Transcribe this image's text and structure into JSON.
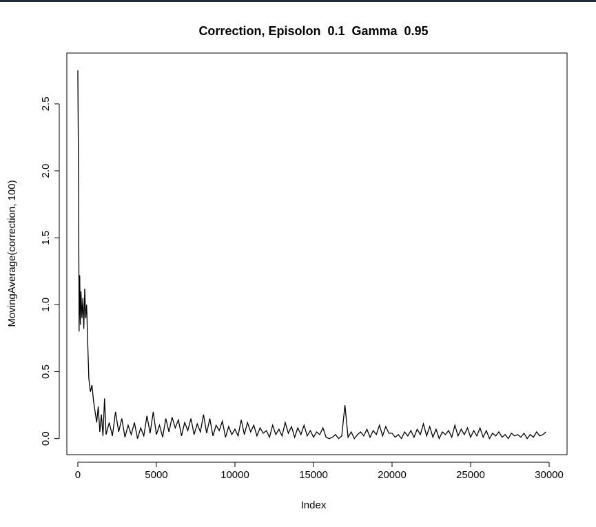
{
  "chart_data": {
    "type": "line",
    "title": "Correction, Episolon  0.1  Gamma  0.95",
    "x_label": "Index",
    "y_label": "MovingAverage(correction, 100)",
    "color": "#000000",
    "xlim": [
      -700,
      31140
    ],
    "ylim": [
      -0.12,
      2.88
    ],
    "xticks": [
      0,
      5000,
      10000,
      15000,
      20000,
      25000,
      30000
    ],
    "yticks": [
      {
        "value": 0,
        "label": "0.0"
      },
      0.5,
      {
        "value": 1,
        "label": "1.0"
      },
      1.5,
      {
        "value": 2,
        "label": "2.0"
      },
      2.5
    ],
    "x": [
      0,
      50,
      80,
      120,
      160,
      200,
      260,
      320,
      380,
      440,
      500,
      560,
      620,
      700,
      800,
      900,
      1000,
      1100,
      1200,
      1300,
      1400,
      1500,
      1600,
      1700,
      1800,
      2000,
      2200,
      2400,
      2600,
      2800,
      3000,
      3200,
      3400,
      3600,
      3800,
      4000,
      4200,
      4400,
      4600,
      4800,
      5000,
      5200,
      5400,
      5600,
      5800,
      6000,
      6200,
      6400,
      6600,
      6800,
      7000,
      7200,
      7400,
      7600,
      7800,
      8000,
      8200,
      8400,
      8600,
      8800,
      9000,
      9200,
      9400,
      9600,
      9800,
      10000,
      10200,
      10400,
      10600,
      10800,
      11000,
      11200,
      11400,
      11600,
      11800,
      12000,
      12200,
      12400,
      12600,
      12800,
      13000,
      13200,
      13400,
      13600,
      13800,
      14000,
      14200,
      14400,
      14600,
      14800,
      15000,
      15200,
      15400,
      15600,
      15800,
      16000,
      16200,
      16400,
      16600,
      16800,
      17000,
      17200,
      17400,
      17600,
      17800,
      18000,
      18200,
      18400,
      18600,
      18800,
      19000,
      19200,
      19400,
      19600,
      19800,
      20000,
      20200,
      20400,
      20600,
      20800,
      21000,
      21200,
      21400,
      21600,
      21800,
      22000,
      22200,
      22400,
      22600,
      22800,
      23000,
      23200,
      23400,
      23600,
      23800,
      24000,
      24200,
      24400,
      24600,
      24800,
      25000,
      25200,
      25400,
      25600,
      25800,
      26000,
      26200,
      26400,
      26600,
      26800,
      27000,
      27200,
      27400,
      27600,
      27800,
      28000,
      28200,
      28400,
      28600,
      28800,
      29000,
      29200,
      29400,
      29600,
      29800
    ],
    "values": [
      2.75,
      1.85,
      0.8,
      1.22,
      0.85,
      1.1,
      0.9,
      1.05,
      0.82,
      1.12,
      0.9,
      1.0,
      0.75,
      0.45,
      0.35,
      0.4,
      0.28,
      0.2,
      0.12,
      0.24,
      0.05,
      0.18,
      0.02,
      0.3,
      0.03,
      0.12,
      0.02,
      0.2,
      0.05,
      0.15,
      0.01,
      0.1,
      0.03,
      0.12,
      0.0,
      0.08,
      0.02,
      0.17,
      0.04,
      0.2,
      0.03,
      0.1,
      0.01,
      0.15,
      0.05,
      0.16,
      0.08,
      0.14,
      0.02,
      0.12,
      0.06,
      0.15,
      0.03,
      0.11,
      0.05,
      0.18,
      0.04,
      0.15,
      0.02,
      0.1,
      0.06,
      0.13,
      0.01,
      0.09,
      0.03,
      0.07,
      0.02,
      0.14,
      0.03,
      0.12,
      0.05,
      0.1,
      0.02,
      0.08,
      0.04,
      0.06,
      0.01,
      0.1,
      0.03,
      0.07,
      0.02,
      0.12,
      0.04,
      0.09,
      0.01,
      0.08,
      0.03,
      0.1,
      0.02,
      0.06,
      0.01,
      0.05,
      0.03,
      0.08,
      0.01,
      0.0,
      0.01,
      0.03,
      0.0,
      0.02,
      0.25,
      0.01,
      0.05,
      0.0,
      0.03,
      0.05,
      0.02,
      0.07,
      0.01,
      0.06,
      0.03,
      0.1,
      0.02,
      0.09,
      0.04,
      0.04,
      0.01,
      0.03,
      0.0,
      0.05,
      0.02,
      0.06,
      0.01,
      0.07,
      0.03,
      0.11,
      0.02,
      0.09,
      0.01,
      0.07,
      0.0,
      0.05,
      0.03,
      0.06,
      0.01,
      0.1,
      0.02,
      0.07,
      0.03,
      0.08,
      0.01,
      0.06,
      0.02,
      0.08,
      0.01,
      0.06,
      0.0,
      0.04,
      0.02,
      0.05,
      0.01,
      0.03,
      0.0,
      0.04,
      0.02,
      0.03,
      0.01,
      0.04,
      0.0,
      0.03,
      0.01,
      0.05,
      0.02,
      0.03,
      0.05
    ]
  }
}
